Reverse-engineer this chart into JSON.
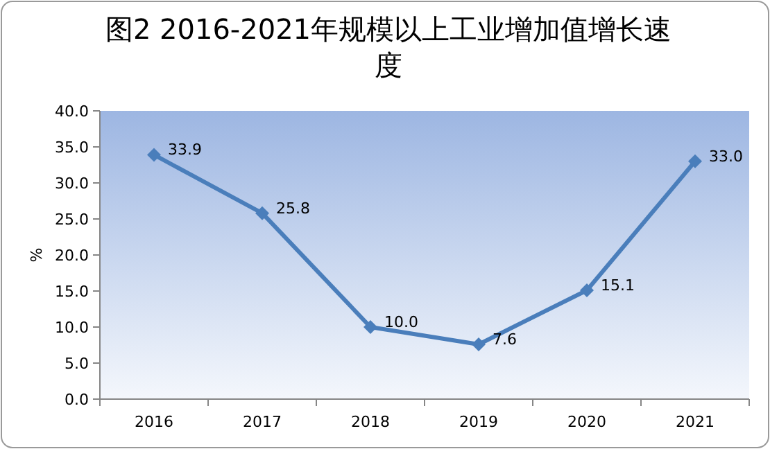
{
  "chart_data": {
    "type": "line",
    "title": "图2 2016-2021年规模以上工业增加值增长速度",
    "ylabel": "%",
    "categories": [
      "2016",
      "2017",
      "2018",
      "2019",
      "2020",
      "2021"
    ],
    "series": [
      {
        "color": "#4a7ebb",
        "values": [
          33.9,
          25.8,
          10.0,
          7.6,
          15.1,
          33.0
        ],
        "value_labels": [
          "33.9",
          "25.8",
          "10.0",
          "7.6",
          "15.1",
          "33.0"
        ]
      }
    ],
    "ylim": [
      0,
      40
    ],
    "yticks": [
      {
        "value": 0,
        "label": "0.0"
      },
      {
        "value": 5,
        "label": "5.0"
      },
      {
        "value": 10,
        "label": "10.0"
      },
      {
        "value": 15,
        "label": "15.0"
      },
      {
        "value": 20,
        "label": "20.0"
      },
      {
        "value": 25,
        "label": "25.0"
      },
      {
        "value": 30,
        "label": "30.0"
      },
      {
        "value": 35,
        "label": "35.0"
      },
      {
        "value": 40,
        "label": "40.0"
      }
    ],
    "marker": "diamond",
    "line_style": "solid"
  }
}
